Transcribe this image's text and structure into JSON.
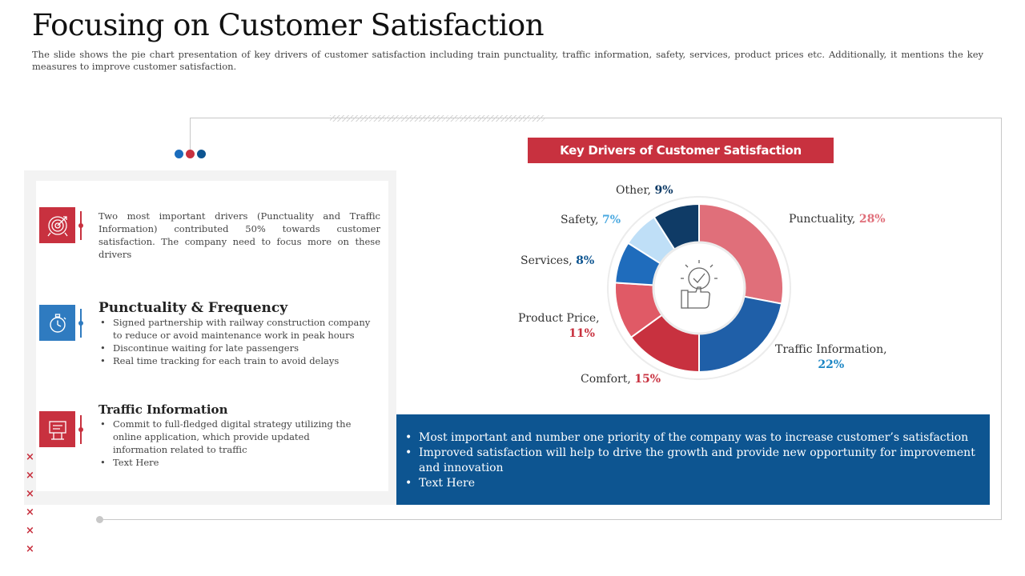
{
  "slide": {
    "title": "Focusing on Customer Satisfaction",
    "subtitle": "The slide shows the pie chart presentation  of key drivers of customer satisfaction including train punctuality, traffic information, safety, services, product prices etc. Additionally, it mentions the key measures to improve customer satisfaction."
  },
  "colors": {
    "red": "#c8313f",
    "blue": "#2f7bc0",
    "navy": "#0d5591"
  },
  "left": {
    "intro": {
      "icon": "target-icon",
      "text": "Two most important drivers (Punctuality and Traffic Information) contributed 50% towards customer satisfaction. The company need to focus more on these drivers"
    },
    "punctuality": {
      "icon": "stopwatch-icon",
      "title": "Punctuality & Frequency",
      "bullets": [
        "Signed partnership  with railway construction company to reduce or avoid maintenance  work in peak hours",
        "Discontinue waiting for late passengers",
        "Real time tracking for each train to avoid delays"
      ]
    },
    "traffic": {
      "icon": "signboard-icon",
      "title": "Traffic Information",
      "bullets": [
        "Commit to full-fledged  digital strategy  utilizing the online application, which provide updated  information related to traffic",
        "Text Here"
      ]
    },
    "crosses": [
      "×",
      "×",
      "×",
      "×",
      "×",
      "×"
    ]
  },
  "chart_data": {
    "type": "pie",
    "title": "Key Drivers of Customer Satisfaction",
    "center_icon": "lightbulb-thumbs-up-icon",
    "labels": [
      "Punctuality",
      "Traffic Information",
      "Comfort",
      "Product Price",
      "Services",
      "Safety",
      "Other"
    ],
    "values": [
      28,
      22,
      15,
      11,
      8,
      7,
      9
    ],
    "units": "%",
    "slice_colors": [
      "#e06f7a",
      "#1f5fa8",
      "#c8313f",
      "#e05a66",
      "#1f6cbc",
      "#bfdff7",
      "#0f3b66"
    ],
    "value_colors": [
      "#e06f7a",
      "#1a85c4",
      "#c8313f",
      "#c8313f",
      "#0d5591",
      "#49a8e0",
      "#0f3b66"
    ],
    "display": [
      {
        "name": "Punctuality,",
        "pct": "28%"
      },
      {
        "name": "Traffic Information,",
        "pct": "22%"
      },
      {
        "name": "Comfort,",
        "pct": "15%"
      },
      {
        "name": "Product Price,",
        "pct": "11%"
      },
      {
        "name": "Services,",
        "pct": "8%"
      },
      {
        "name": "Safety,",
        "pct": "7%"
      },
      {
        "name": "Other,",
        "pct": "9%"
      }
    ]
  },
  "measures": [
    "Most important and number one priority of the company was to increase customer’s satisfaction",
    "Improved satisfaction will help to drive the growth and provide new opportunity for improvement and innovation",
    "Text Here"
  ]
}
